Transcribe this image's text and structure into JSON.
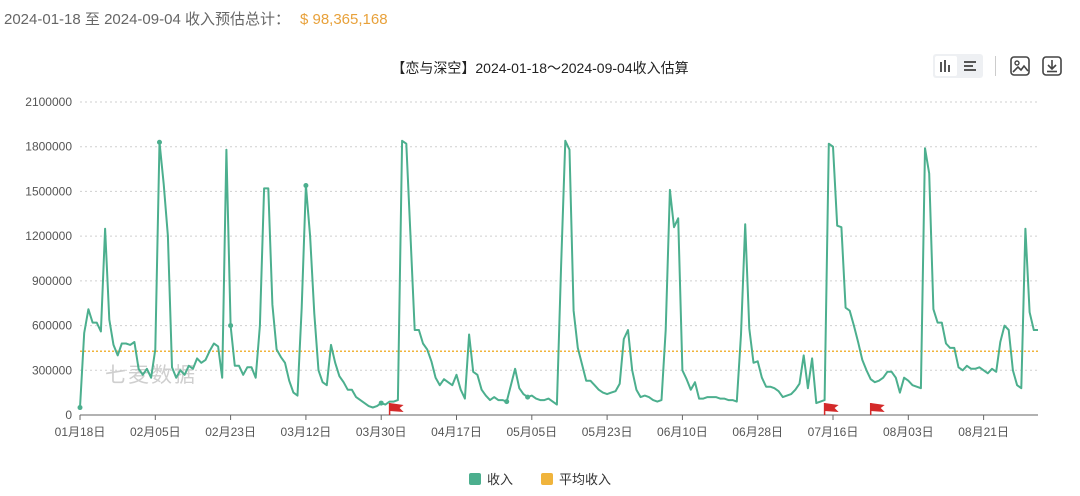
{
  "summary": {
    "text": "2024-01-18 至 2024-09-04 收入预估总计：",
    "amount": "$ 98,365,168"
  },
  "watermark": "七麦数据",
  "colors": {
    "series": "#4caf8e",
    "average": "#f0b43c",
    "flag": "#d42a2a",
    "grid": "#cfcfcf"
  },
  "toolbar": {
    "icons": [
      "bar-chart-icon",
      "list-icon",
      "image-icon",
      "download-icon"
    ]
  },
  "chart_data": {
    "type": "line",
    "title": "【恋与深空】2024-01-18～2024-09-04收入估算",
    "ylim": [
      0,
      2100000
    ],
    "y_ticks": [
      "0",
      "300000",
      "600000",
      "900000",
      "1200000",
      "1500000",
      "1800000",
      "2100000"
    ],
    "x_ticks": [
      {
        "label": "01月18日",
        "day": 0
      },
      {
        "label": "02月05日",
        "day": 18
      },
      {
        "label": "02月23日",
        "day": 36
      },
      {
        "label": "03月12日",
        "day": 54
      },
      {
        "label": "03月30日",
        "day": 72
      },
      {
        "label": "04月17日",
        "day": 90
      },
      {
        "label": "05月05日",
        "day": 108
      },
      {
        "label": "05月23日",
        "day": 126
      },
      {
        "label": "06月10日",
        "day": 144
      },
      {
        "label": "06月28日",
        "day": 162
      },
      {
        "label": "07月16日",
        "day": 180
      },
      {
        "label": "08月03日",
        "day": 198
      },
      {
        "label": "08月21日",
        "day": 216
      }
    ],
    "grid": true,
    "legend_position": "bottom",
    "series": [
      {
        "name": "收入",
        "values": [
          50000,
          550000,
          710000,
          620000,
          620000,
          560000,
          1250000,
          640000,
          470000,
          400000,
          480000,
          480000,
          470000,
          490000,
          310000,
          270000,
          310000,
          250000,
          440000,
          1830000,
          1550000,
          1200000,
          320000,
          250000,
          300000,
          270000,
          330000,
          310000,
          380000,
          350000,
          370000,
          430000,
          480000,
          460000,
          250000,
          1780000,
          600000,
          330000,
          330000,
          270000,
          320000,
          320000,
          250000,
          600000,
          1520000,
          1520000,
          740000,
          440000,
          390000,
          350000,
          230000,
          150000,
          130000,
          720000,
          1540000,
          1200000,
          680000,
          300000,
          220000,
          200000,
          470000,
          350000,
          260000,
          220000,
          170000,
          170000,
          120000,
          100000,
          80000,
          60000,
          50000,
          60000,
          80000,
          70000,
          90000,
          90000,
          100000,
          1840000,
          1820000,
          1200000,
          570000,
          570000,
          480000,
          440000,
          360000,
          250000,
          200000,
          240000,
          220000,
          200000,
          270000,
          170000,
          110000,
          540000,
          290000,
          270000,
          170000,
          130000,
          100000,
          120000,
          100000,
          100000,
          90000,
          200000,
          310000,
          180000,
          140000,
          120000,
          130000,
          110000,
          100000,
          100000,
          110000,
          90000,
          70000,
          1000000,
          1840000,
          1780000,
          700000,
          450000,
          340000,
          230000,
          230000,
          200000,
          170000,
          150000,
          140000,
          150000,
          160000,
          210000,
          510000,
          570000,
          300000,
          170000,
          120000,
          130000,
          120000,
          100000,
          90000,
          100000,
          570000,
          1510000,
          1260000,
          1320000,
          300000,
          240000,
          170000,
          220000,
          110000,
          110000,
          120000,
          120000,
          120000,
          110000,
          110000,
          100000,
          100000,
          90000,
          540000,
          1280000,
          580000,
          350000,
          360000,
          250000,
          190000,
          190000,
          180000,
          160000,
          120000,
          130000,
          140000,
          170000,
          210000,
          400000,
          180000,
          380000,
          80000,
          90000,
          100000,
          1820000,
          1800000,
          1270000,
          1260000,
          720000,
          700000,
          600000,
          490000,
          370000,
          300000,
          240000,
          220000,
          230000,
          250000,
          290000,
          290000,
          250000,
          150000,
          250000,
          230000,
          200000,
          190000,
          180000,
          1790000,
          1620000,
          710000,
          620000,
          620000,
          480000,
          450000,
          450000,
          320000,
          300000,
          330000,
          310000,
          310000,
          320000,
          300000,
          280000,
          310000,
          290000,
          490000,
          600000,
          570000,
          300000,
          200000,
          180000,
          1250000,
          690000,
          570000,
          570000
        ]
      },
      {
        "name": "平均收入",
        "values_constant": 428000
      }
    ],
    "markers": {
      "points_days": [
        0,
        19,
        36,
        54,
        72,
        102,
        107
      ],
      "flags_days": [
        74,
        178,
        189
      ]
    }
  }
}
